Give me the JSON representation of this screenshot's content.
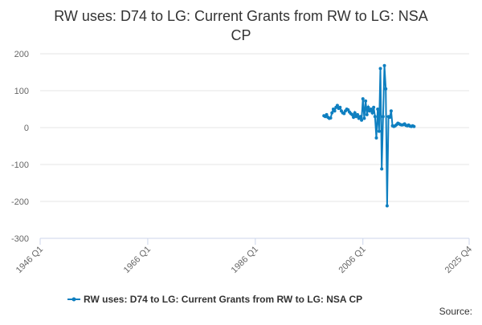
{
  "chart_data": {
    "type": "line",
    "title": [
      "RW uses: D74 to LG: Current Grants from RW to LG: NSA",
      "CP"
    ],
    "x": [
      "1998 Q4",
      "1999 Q1",
      "1999 Q2",
      "1999 Q3",
      "1999 Q4",
      "2000 Q1",
      "2000 Q2",
      "2000 Q3",
      "2000 Q4",
      "2001 Q1",
      "2001 Q2",
      "2001 Q3",
      "2001 Q4",
      "2002 Q1",
      "2002 Q2",
      "2002 Q3",
      "2002 Q4",
      "2003 Q1",
      "2003 Q2",
      "2003 Q3",
      "2003 Q4",
      "2004 Q1",
      "2004 Q2",
      "2004 Q3",
      "2004 Q4",
      "2005 Q1",
      "2005 Q2",
      "2005 Q3",
      "2005 Q4",
      "2006 Q1",
      "2006 Q2",
      "2006 Q3",
      "2006 Q4",
      "2007 Q1",
      "2007 Q2",
      "2007 Q3",
      "2007 Q4",
      "2008 Q1",
      "2008 Q2",
      "2008 Q3",
      "2008 Q4",
      "2009 Q1",
      "2009 Q2",
      "2009 Q3",
      "2009 Q4",
      "2010 Q1",
      "2010 Q2",
      "2010 Q3",
      "2010 Q4",
      "2011 Q1",
      "2011 Q2",
      "2011 Q3",
      "2011 Q4",
      "2012 Q1",
      "2012 Q2",
      "2012 Q3",
      "2012 Q4",
      "2013 Q1",
      "2013 Q2",
      "2013 Q3",
      "2013 Q4",
      "2014 Q1",
      "2014 Q2",
      "2014 Q3",
      "2014 Q4",
      "2015 Q1",
      "2015 Q2",
      "2015 Q3"
    ],
    "series": [
      {
        "name": "RW uses: D74 to LG: Current Grants from RW to LG: NSA CP",
        "color": "#0e7fc0",
        "values": [
          32,
          30,
          35,
          28,
          25,
          26,
          40,
          50,
          45,
          55,
          60,
          52,
          55,
          45,
          40,
          38,
          45,
          50,
          48,
          42,
          38,
          35,
          28,
          40,
          30,
          35,
          25,
          30,
          20,
          78,
          25,
          72,
          35,
          55,
          45,
          50,
          40,
          55,
          30,
          -28,
          50,
          -10,
          160,
          -112,
          30,
          168,
          105,
          -212,
          30,
          28,
          45,
          5,
          3,
          5,
          8,
          12,
          10,
          8,
          7,
          8,
          10,
          6,
          5,
          7,
          4,
          3,
          5,
          3
        ]
      }
    ],
    "xlim": [
      "1946 Q1",
      "2025 Q4"
    ],
    "xticks": [
      "1946 Q1",
      "1966 Q1",
      "1986 Q1",
      "2006 Q1",
      "2025 Q4"
    ],
    "ylim": [
      -300,
      200
    ],
    "yticks": [
      -300,
      -200,
      -100,
      0,
      100,
      200
    ],
    "grid": true,
    "source": "Source:"
  }
}
